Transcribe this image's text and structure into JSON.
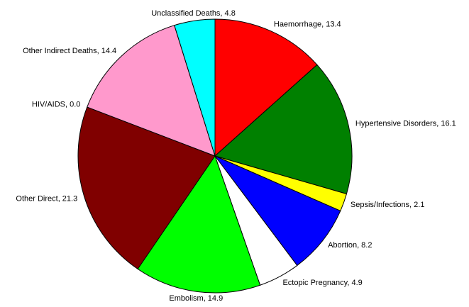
{
  "chart_data": {
    "type": "pie",
    "categories": [
      "Haemorrhage",
      "Hypertensive Disorders",
      "Sepsis/Infections",
      "Abortion",
      "Ectopic Pregnancy",
      "Embolism",
      "Other Direct",
      "HIV/AIDS",
      "Other Indirect Deaths",
      "Unclassified Deaths"
    ],
    "values": [
      13.4,
      16.1,
      2.1,
      8.2,
      4.9,
      14.9,
      21.3,
      0.0,
      14.4,
      4.8
    ],
    "labels": [
      "Haemorrhage, 13.4",
      "Hypertensive Disorders, 16.1",
      "Sepsis/Infections, 2.1",
      "Abortion, 8.2",
      "Ectopic Pregnancy, 4.9",
      "Embolism, 14.9",
      "Other Direct, 21.3",
      "HIV/AIDS, 0.0",
      "Other Indirect Deaths, 14.4",
      "Unclassified Deaths, 4.8"
    ],
    "colors": [
      "#ff0000",
      "#008000",
      "#ffff00",
      "#0000ff",
      "#ffffff",
      "#00ff00",
      "#800000",
      "#808080",
      "#ff99cc",
      "#00ffff"
    ]
  }
}
